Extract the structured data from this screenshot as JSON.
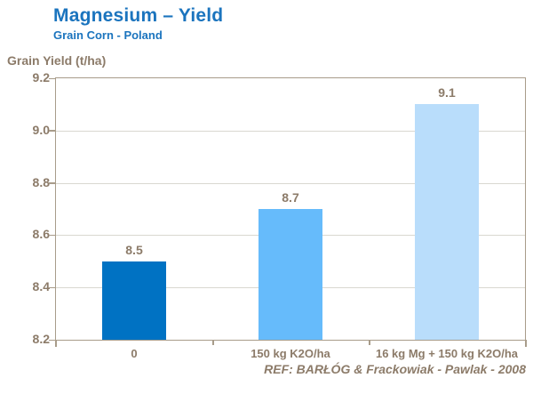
{
  "header": {
    "title": "Magnesium – Yield",
    "subtitle": "Grain Corn - Poland"
  },
  "footer": {
    "reference": "REF:  BARŁÓG & Frackowiak - Pawlak - 2008"
  },
  "colors": {
    "title_blue": "#1B74BE",
    "axis_text_brown": "#8C7B69",
    "gridline": "#D9D8D0",
    "plot_border": "#A89C8A",
    "bar_dark_blue": "#0072C3",
    "bar_medium_blue": "#66BBFB",
    "bar_light_blue": "#B9DDFB"
  },
  "chart_data": {
    "type": "bar",
    "title": "Magnesium – Yield",
    "subtitle": "Grain Corn - Poland",
    "ylabel": "Grain Yield (t/ha)",
    "xlabel": "",
    "categories": [
      "0",
      "150 kg K2O/ha",
      "16 kg Mg + 150 kg K2O/ha"
    ],
    "values": [
      8.5,
      8.7,
      9.1
    ],
    "value_labels": [
      "8.5",
      "8.7",
      "9.1"
    ],
    "bar_colors": [
      "#0072C3",
      "#66BBFB",
      "#B9DDFB"
    ],
    "ylim": [
      8.2,
      9.2
    ],
    "yticks": [
      8.2,
      8.4,
      8.6,
      8.8,
      9.0,
      9.2
    ],
    "ytick_labels": [
      "8.2",
      "8.4",
      "8.6",
      "8.8",
      "9.0",
      "9.2"
    ],
    "grid": "horizontal",
    "legend": "none",
    "annotation": "REF:  BARŁÓG & Frackowiak - Pawlak - 2008"
  }
}
